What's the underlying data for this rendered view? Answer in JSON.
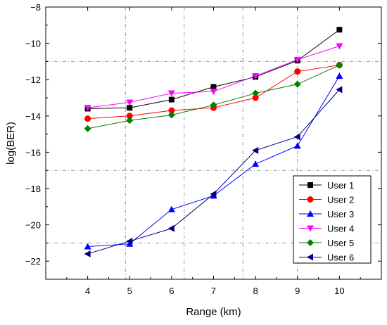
{
  "chart_data": {
    "type": "line",
    "title": "",
    "xlabel": "Range (km)",
    "ylabel": "log(BER)",
    "x": [
      4,
      5,
      6,
      7,
      8,
      9,
      10
    ],
    "xlim": [
      3,
      11
    ],
    "ylim": [
      -23,
      -8
    ],
    "xticks": [
      4,
      5,
      6,
      7,
      8,
      9,
      10
    ],
    "yticks": [
      -22,
      -20,
      -18,
      -16,
      -14,
      -12,
      -10,
      -8
    ],
    "grid": "dash-dot",
    "legend": "bottom-right",
    "series": [
      {
        "name": "User 1",
        "color": "#000000",
        "marker": "square",
        "values": [
          -13.6,
          -13.55,
          -13.1,
          -12.4,
          -11.85,
          -10.95,
          -9.25
        ]
      },
      {
        "name": "User 2",
        "color": "#ff0000",
        "marker": "circle",
        "values": [
          -14.15,
          -14.0,
          -13.7,
          -13.55,
          -13.0,
          -11.55,
          -11.2
        ]
      },
      {
        "name": "User 3",
        "color": "#0000ff",
        "marker": "triangle-up",
        "values": [
          -21.2,
          -21.05,
          -19.15,
          -18.4,
          -16.65,
          -15.65,
          -11.8
        ]
      },
      {
        "name": "User 4",
        "color": "#ff00ff",
        "marker": "triangle-down",
        "values": [
          -13.55,
          -13.25,
          -12.75,
          -12.65,
          -11.8,
          -10.9,
          -10.15
        ]
      },
      {
        "name": "User 5",
        "color": "#008000",
        "marker": "diamond",
        "values": [
          -14.7,
          -14.25,
          -13.95,
          -13.4,
          -12.75,
          -12.25,
          -11.2
        ]
      },
      {
        "name": "User 6",
        "color": "#000080",
        "marker": "triangle-left",
        "values": [
          -21.6,
          -20.9,
          -20.2,
          -18.3,
          -15.9,
          -15.15,
          -12.55
        ]
      }
    ]
  }
}
